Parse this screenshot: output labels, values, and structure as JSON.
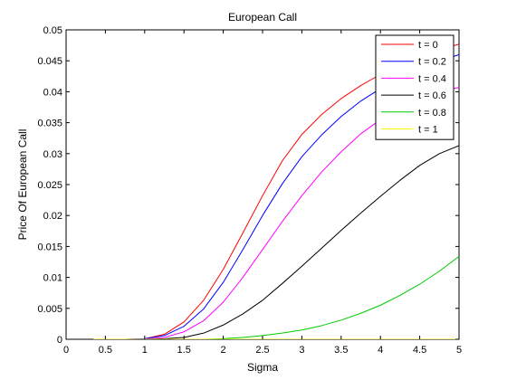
{
  "chart_data": {
    "type": "line",
    "title": "European Call",
    "xlabel": "Sigma",
    "ylabel": "Price Of European Call",
    "xlim": [
      0,
      5
    ],
    "ylim": [
      0,
      0.05
    ],
    "xticks": [
      "0",
      "0.5",
      "1",
      "1.5",
      "2",
      "2.5",
      "3",
      "3.5",
      "4",
      "4.5",
      "5"
    ],
    "yticks": [
      "0",
      "0.005",
      "0.01",
      "0.015",
      "0.02",
      "0.025",
      "0.03",
      "0.035",
      "0.04",
      "0.045",
      "0.05"
    ],
    "grid": false,
    "legend_position": "top-right",
    "x": [
      0.35,
      0.5,
      0.75,
      1.0,
      1.25,
      1.5,
      1.75,
      2.0,
      2.25,
      2.5,
      2.75,
      3.0,
      3.25,
      3.5,
      3.75,
      4.0,
      4.25,
      4.5,
      4.75,
      5.0
    ],
    "series": [
      {
        "name": "t = 0",
        "color": "#ff0000",
        "values": [
          0,
          0,
          0,
          0.0001,
          0.0008,
          0.0028,
          0.0063,
          0.0113,
          0.0172,
          0.0232,
          0.0288,
          0.0331,
          0.0363,
          0.0389,
          0.041,
          0.0428,
          0.0443,
          0.0456,
          0.0467,
          0.0477
        ]
      },
      {
        "name": "t = 0.2",
        "color": "#0000ff",
        "values": [
          0,
          0,
          0,
          0.0001,
          0.0006,
          0.0021,
          0.0049,
          0.0092,
          0.0145,
          0.02,
          0.0251,
          0.0295,
          0.033,
          0.036,
          0.0385,
          0.0405,
          0.0422,
          0.0437,
          0.0449,
          0.046
        ]
      },
      {
        "name": "t = 0.4",
        "color": "#ff00ff",
        "values": [
          0,
          0,
          0,
          0,
          0.0003,
          0.0012,
          0.003,
          0.006,
          0.01,
          0.0145,
          0.019,
          0.0232,
          0.027,
          0.0303,
          0.0332,
          0.0355,
          0.0375,
          0.039,
          0.04,
          0.0407
        ]
      },
      {
        "name": "t = 0.6",
        "color": "#000000",
        "values": [
          0,
          0,
          0,
          0,
          0.0001,
          0.0003,
          0.001,
          0.0023,
          0.0041,
          0.0063,
          0.009,
          0.0118,
          0.0147,
          0.0176,
          0.0204,
          0.0231,
          0.0257,
          0.0281,
          0.03,
          0.0313
        ]
      },
      {
        "name": "t = 0.8",
        "color": "#00cc00",
        "values": [
          0,
          0,
          0,
          0,
          0,
          0,
          0,
          0.0001,
          0.0003,
          0.0006,
          0.001,
          0.0015,
          0.0022,
          0.0031,
          0.0042,
          0.0055,
          0.0071,
          0.0089,
          0.011,
          0.0134
        ]
      },
      {
        "name": "t = 1",
        "color": "#ffff00",
        "values": [
          0,
          0,
          0,
          0,
          0,
          0,
          0,
          0,
          0,
          0,
          0,
          0,
          0,
          0,
          0,
          0,
          0,
          0,
          0,
          0
        ]
      }
    ]
  }
}
